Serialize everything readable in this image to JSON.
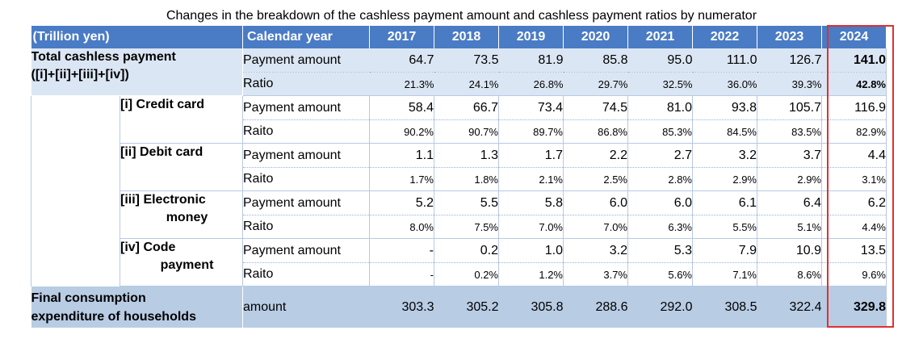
{
  "caption": "Changes in the breakdown of the cashless payment amount and cashless payment ratios by numerator",
  "header": {
    "unit": "(Trillion yen)",
    "calendar_year": "Calendar year",
    "years": [
      "2017",
      "2018",
      "2019",
      "2020",
      "2021",
      "2022",
      "2023",
      "2024"
    ]
  },
  "total": {
    "label_line1": "Total cashless payment",
    "label_line2": "([i]+[ii]+[iii]+[iv])",
    "amount_label": "Payment amount",
    "amount": [
      "64.7",
      "73.5",
      "81.9",
      "85.8",
      "95.0",
      "111.0",
      "126.7",
      "141.0"
    ],
    "ratio_label": "Ratio",
    "ratio": [
      "21.3%",
      "24.1%",
      "26.8%",
      "29.7%",
      "32.5%",
      "36.0%",
      "39.3%",
      "42.8%"
    ]
  },
  "categories": [
    {
      "label_line1": "[i] Credit card",
      "label_line2": "",
      "amount_label": "Payment amount",
      "amount": [
        "58.4",
        "66.7",
        "73.4",
        "74.5",
        "81.0",
        "93.8",
        "105.7",
        "116.9"
      ],
      "ratio_label": "Raito",
      "ratio": [
        "90.2%",
        "90.7%",
        "89.7%",
        "86.8%",
        "85.3%",
        "84.5%",
        "83.5%",
        "82.9%"
      ]
    },
    {
      "label_line1": "[ii] Debit card",
      "label_line2": "",
      "amount_label": "Payment amount",
      "amount": [
        "1.1",
        "1.3",
        "1.7",
        "2.2",
        "2.7",
        "3.2",
        "3.7",
        "4.4"
      ],
      "ratio_label": "Raito",
      "ratio": [
        "1.7%",
        "1.8%",
        "2.1%",
        "2.5%",
        "2.8%",
        "2.9%",
        "2.9%",
        "3.1%"
      ]
    },
    {
      "label_line1": "[iii] Electronic",
      "label_line2": "money",
      "amount_label": "Payment amount",
      "amount": [
        "5.2",
        "5.5",
        "5.8",
        "6.0",
        "6.0",
        "6.1",
        "6.4",
        "6.2"
      ],
      "ratio_label": "Raito",
      "ratio": [
        "8.0%",
        "7.5%",
        "7.0%",
        "7.0%",
        "6.3%",
        "5.5%",
        "5.1%",
        "4.4%"
      ]
    },
    {
      "label_line1": "[iv] Code",
      "label_line2": "payment",
      "amount_label": "Payment amount",
      "amount": [
        "-",
        "0.2",
        "1.0",
        "3.2",
        "5.3",
        "7.9",
        "10.9",
        "13.5"
      ],
      "ratio_label": "Raito",
      "ratio": [
        "-",
        "0.2%",
        "1.2%",
        "3.7%",
        "5.6%",
        "7.1%",
        "8.6%",
        "9.6%"
      ]
    }
  ],
  "final": {
    "label_line1": "Final consumption",
    "label_line2": "expenditure of households",
    "amount_label": "amount",
    "amount": [
      "303.3",
      "305.2",
      "305.8",
      "288.6",
      "292.0",
      "308.5",
      "322.4",
      "329.8"
    ]
  },
  "highlight_color": "#e03030",
  "header_color": "#4a7bc5"
}
